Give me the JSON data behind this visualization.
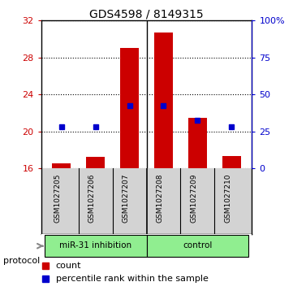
{
  "title": "GDS4598 / 8149315",
  "samples": [
    "GSM1027205",
    "GSM1027206",
    "GSM1027207",
    "GSM1027208",
    "GSM1027209",
    "GSM1027210"
  ],
  "count_values": [
    16.5,
    17.2,
    29.0,
    30.7,
    21.5,
    17.3
  ],
  "percentile_values": [
    20.5,
    20.5,
    22.8,
    22.8,
    21.2,
    20.5
  ],
  "count_base": 16,
  "ylim_left": [
    16,
    32
  ],
  "ylim_right": [
    0,
    100
  ],
  "yticks_left": [
    16,
    20,
    24,
    28,
    32
  ],
  "yticks_right": [
    0,
    25,
    50,
    75,
    100
  ],
  "ytick_labels_right": [
    "0",
    "25",
    "50",
    "75",
    "100%"
  ],
  "bar_color": "#cc0000",
  "dot_color": "#0000cc",
  "bar_width": 0.55,
  "protocol_label": "protocol",
  "legend_count_label": "count",
  "legend_pct_label": "percentile rank within the sample",
  "grid_color": "#000000",
  "spine_color": "#000000",
  "bg_color": "#ffffff",
  "plot_bg": "#ffffff",
  "label_area_bg": "#d3d3d3",
  "group_color": "#90ee90",
  "group1_label": "miR-31 inhibition",
  "group2_label": "control"
}
